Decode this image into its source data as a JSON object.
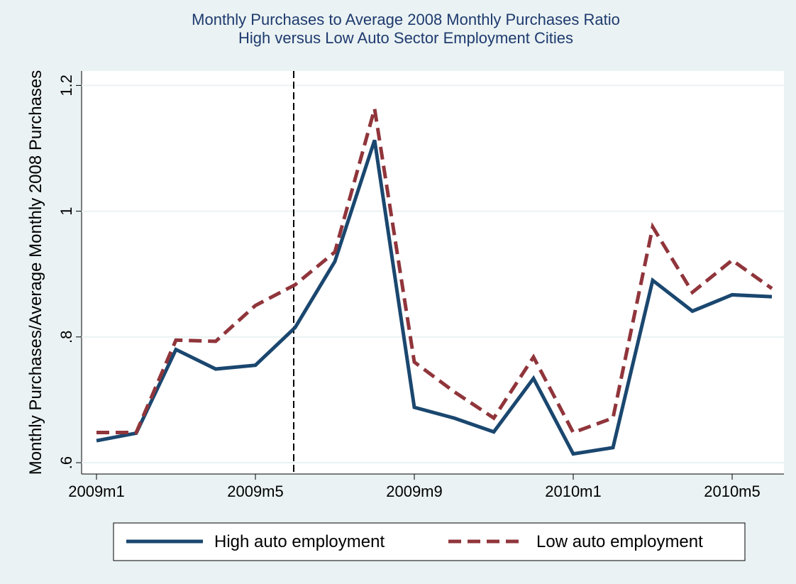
{
  "chart_data": {
    "type": "line",
    "title": [
      "Monthly Purchases to Average 2008 Monthly Purchases Ratio",
      "High versus Low Auto Sector Employment Cities"
    ],
    "y_label": "Monthly Purchases/Average Monthly 2008 Purchases",
    "categories": [
      "2009m1",
      null,
      null,
      null,
      "2009m5",
      null,
      null,
      null,
      "2009m9",
      null,
      null,
      null,
      "2010m1",
      null,
      null,
      null,
      "2010m5",
      null
    ],
    "series": [
      {
        "name": "High auto employment",
        "color": "#1a476f",
        "dash": "solid",
        "values": [
          0.635,
          0.647,
          0.78,
          0.749,
          0.755,
          0.815,
          0.92,
          1.113,
          0.688,
          0.671,
          0.649,
          0.734,
          0.614,
          0.624,
          0.89,
          0.841,
          0.867,
          0.864
        ]
      },
      {
        "name": "Low auto employment",
        "color": "#90353b",
        "dash": "dashed",
        "values": [
          0.648,
          0.648,
          0.795,
          0.793,
          0.85,
          0.883,
          0.935,
          1.163,
          0.76,
          0.713,
          0.671,
          0.768,
          0.648,
          0.671,
          0.975,
          0.871,
          0.922,
          0.877
        ]
      }
    ],
    "ylim": [
      0.582,
      1.223
    ],
    "yticks": [
      {
        "value": 0.6,
        "label": ".6"
      },
      {
        "value": 0.8,
        "label": ".8"
      },
      1,
      1.2
    ],
    "reference_line_category": 5,
    "grid": true,
    "legend": "bottom"
  }
}
